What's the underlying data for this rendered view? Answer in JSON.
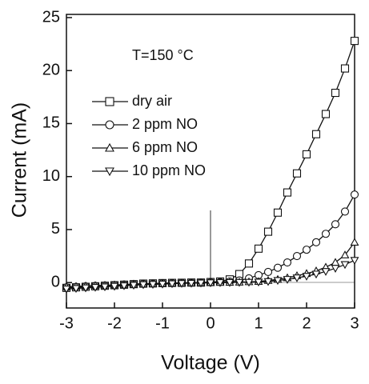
{
  "chart_data": {
    "type": "line",
    "annotation": "T=150 °C",
    "x_label": "Voltage (V)",
    "y_label": "Current (mA)",
    "x": [
      -3,
      -2.8,
      -2.6,
      -2.4,
      -2.2,
      -2,
      -1.8,
      -1.6,
      -1.4,
      -1.2,
      -1,
      -0.8,
      -0.6,
      -0.4,
      -0.2,
      0,
      0.2,
      0.4,
      0.6,
      0.8,
      1,
      1.2,
      1.4,
      1.6,
      1.8,
      2,
      2.2,
      2.4,
      2.6,
      2.8,
      3
    ],
    "series": [
      {
        "name": "dry air",
        "color": "#111111",
        "marker": "square",
        "values": [
          -0.5,
          -0.45,
          -0.4,
          -0.35,
          -0.3,
          -0.25,
          -0.2,
          -0.15,
          -0.1,
          -0.08,
          -0.05,
          -0.03,
          -0.02,
          0,
          0,
          0.05,
          0.1,
          0.3,
          0.8,
          1.8,
          3.2,
          4.8,
          6.6,
          8.5,
          10.3,
          12.1,
          14,
          15.9,
          17.9,
          20.2,
          22.8
        ]
      },
      {
        "name": "2 ppm NO",
        "color": "#111111",
        "marker": "circle",
        "values": [
          -0.45,
          -0.4,
          -0.36,
          -0.32,
          -0.28,
          -0.24,
          -0.2,
          -0.16,
          -0.12,
          -0.1,
          -0.07,
          -0.05,
          -0.03,
          -0.02,
          0,
          0.02,
          0.05,
          0.1,
          0.2,
          0.4,
          0.7,
          1,
          1.4,
          1.9,
          2.5,
          3.1,
          3.8,
          4.6,
          5.5,
          6.7,
          8.3
        ]
      },
      {
        "name": "6 ppm NO",
        "color": "#111111",
        "marker": "triangle-up",
        "values": [
          -0.4,
          -0.36,
          -0.32,
          -0.28,
          -0.25,
          -0.22,
          -0.18,
          -0.15,
          -0.12,
          -0.1,
          -0.08,
          -0.06,
          -0.04,
          -0.03,
          -0.02,
          0,
          0.01,
          0.02,
          0.04,
          0.07,
          0.1,
          0.2,
          0.3,
          0.45,
          0.65,
          0.85,
          1.1,
          1.45,
          1.9,
          2.6,
          3.8
        ]
      },
      {
        "name": "10 ppm NO",
        "color": "#111111",
        "marker": "triangle-down",
        "values": [
          -0.6,
          -0.55,
          -0.5,
          -0.45,
          -0.4,
          -0.35,
          -0.3,
          -0.25,
          -0.2,
          -0.17,
          -0.14,
          -0.11,
          -0.08,
          -0.06,
          -0.04,
          -0.02,
          0,
          0.01,
          0.02,
          0.03,
          0.05,
          0.1,
          0.2,
          0.3,
          0.45,
          0.6,
          0.8,
          1.05,
          1.35,
          1.7,
          2.1
        ]
      }
    ],
    "xlim": [
      -3,
      3
    ],
    "xticks": [
      -3,
      -2,
      -1,
      0,
      1,
      2,
      3
    ],
    "ylim": [
      -2.4,
      25.3
    ],
    "yticks": [
      0,
      5,
      10,
      15,
      20,
      25
    ],
    "legend": "upper left"
  }
}
